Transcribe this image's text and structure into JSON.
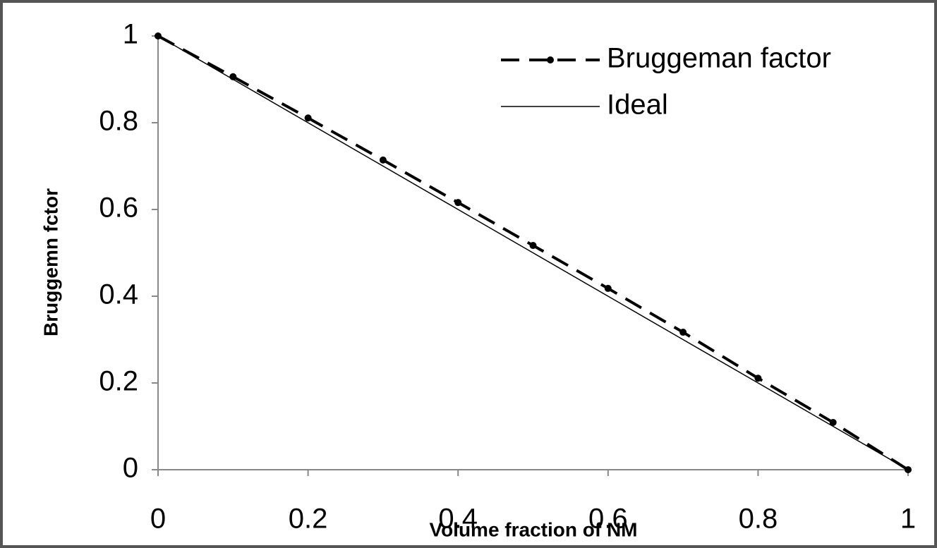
{
  "chart_data": {
    "type": "line",
    "x_label": "Volume fraction of NM",
    "y_label": "Bruggemn fctor",
    "x": [
      0,
      0.1,
      0.2,
      0.3,
      0.4,
      0.5,
      0.6,
      0.7,
      0.8,
      0.9,
      1
    ],
    "series": [
      {
        "name": "Bruggeman factor",
        "color": "#000000",
        "style": "dashed",
        "marker": true,
        "values": [
          1,
          0.906,
          0.811,
          0.714,
          0.616,
          0.517,
          0.418,
          0.317,
          0.211,
          0.109,
          0
        ]
      },
      {
        "name": "Ideal",
        "color": "#000000",
        "style": "solid",
        "marker": false,
        "values": [
          1,
          0.9,
          0.8,
          0.7,
          0.6,
          0.5,
          0.4,
          0.3,
          0.2,
          0.1,
          0
        ]
      }
    ],
    "xlim": [
      0,
      1
    ],
    "ylim": [
      0,
      1
    ],
    "xticks": [
      0,
      0.2,
      0.4,
      0.6,
      0.8,
      1
    ],
    "yticks": [
      0,
      0.2,
      0.4,
      0.6,
      0.8,
      1
    ],
    "grid": false,
    "legend": "upper right"
  }
}
